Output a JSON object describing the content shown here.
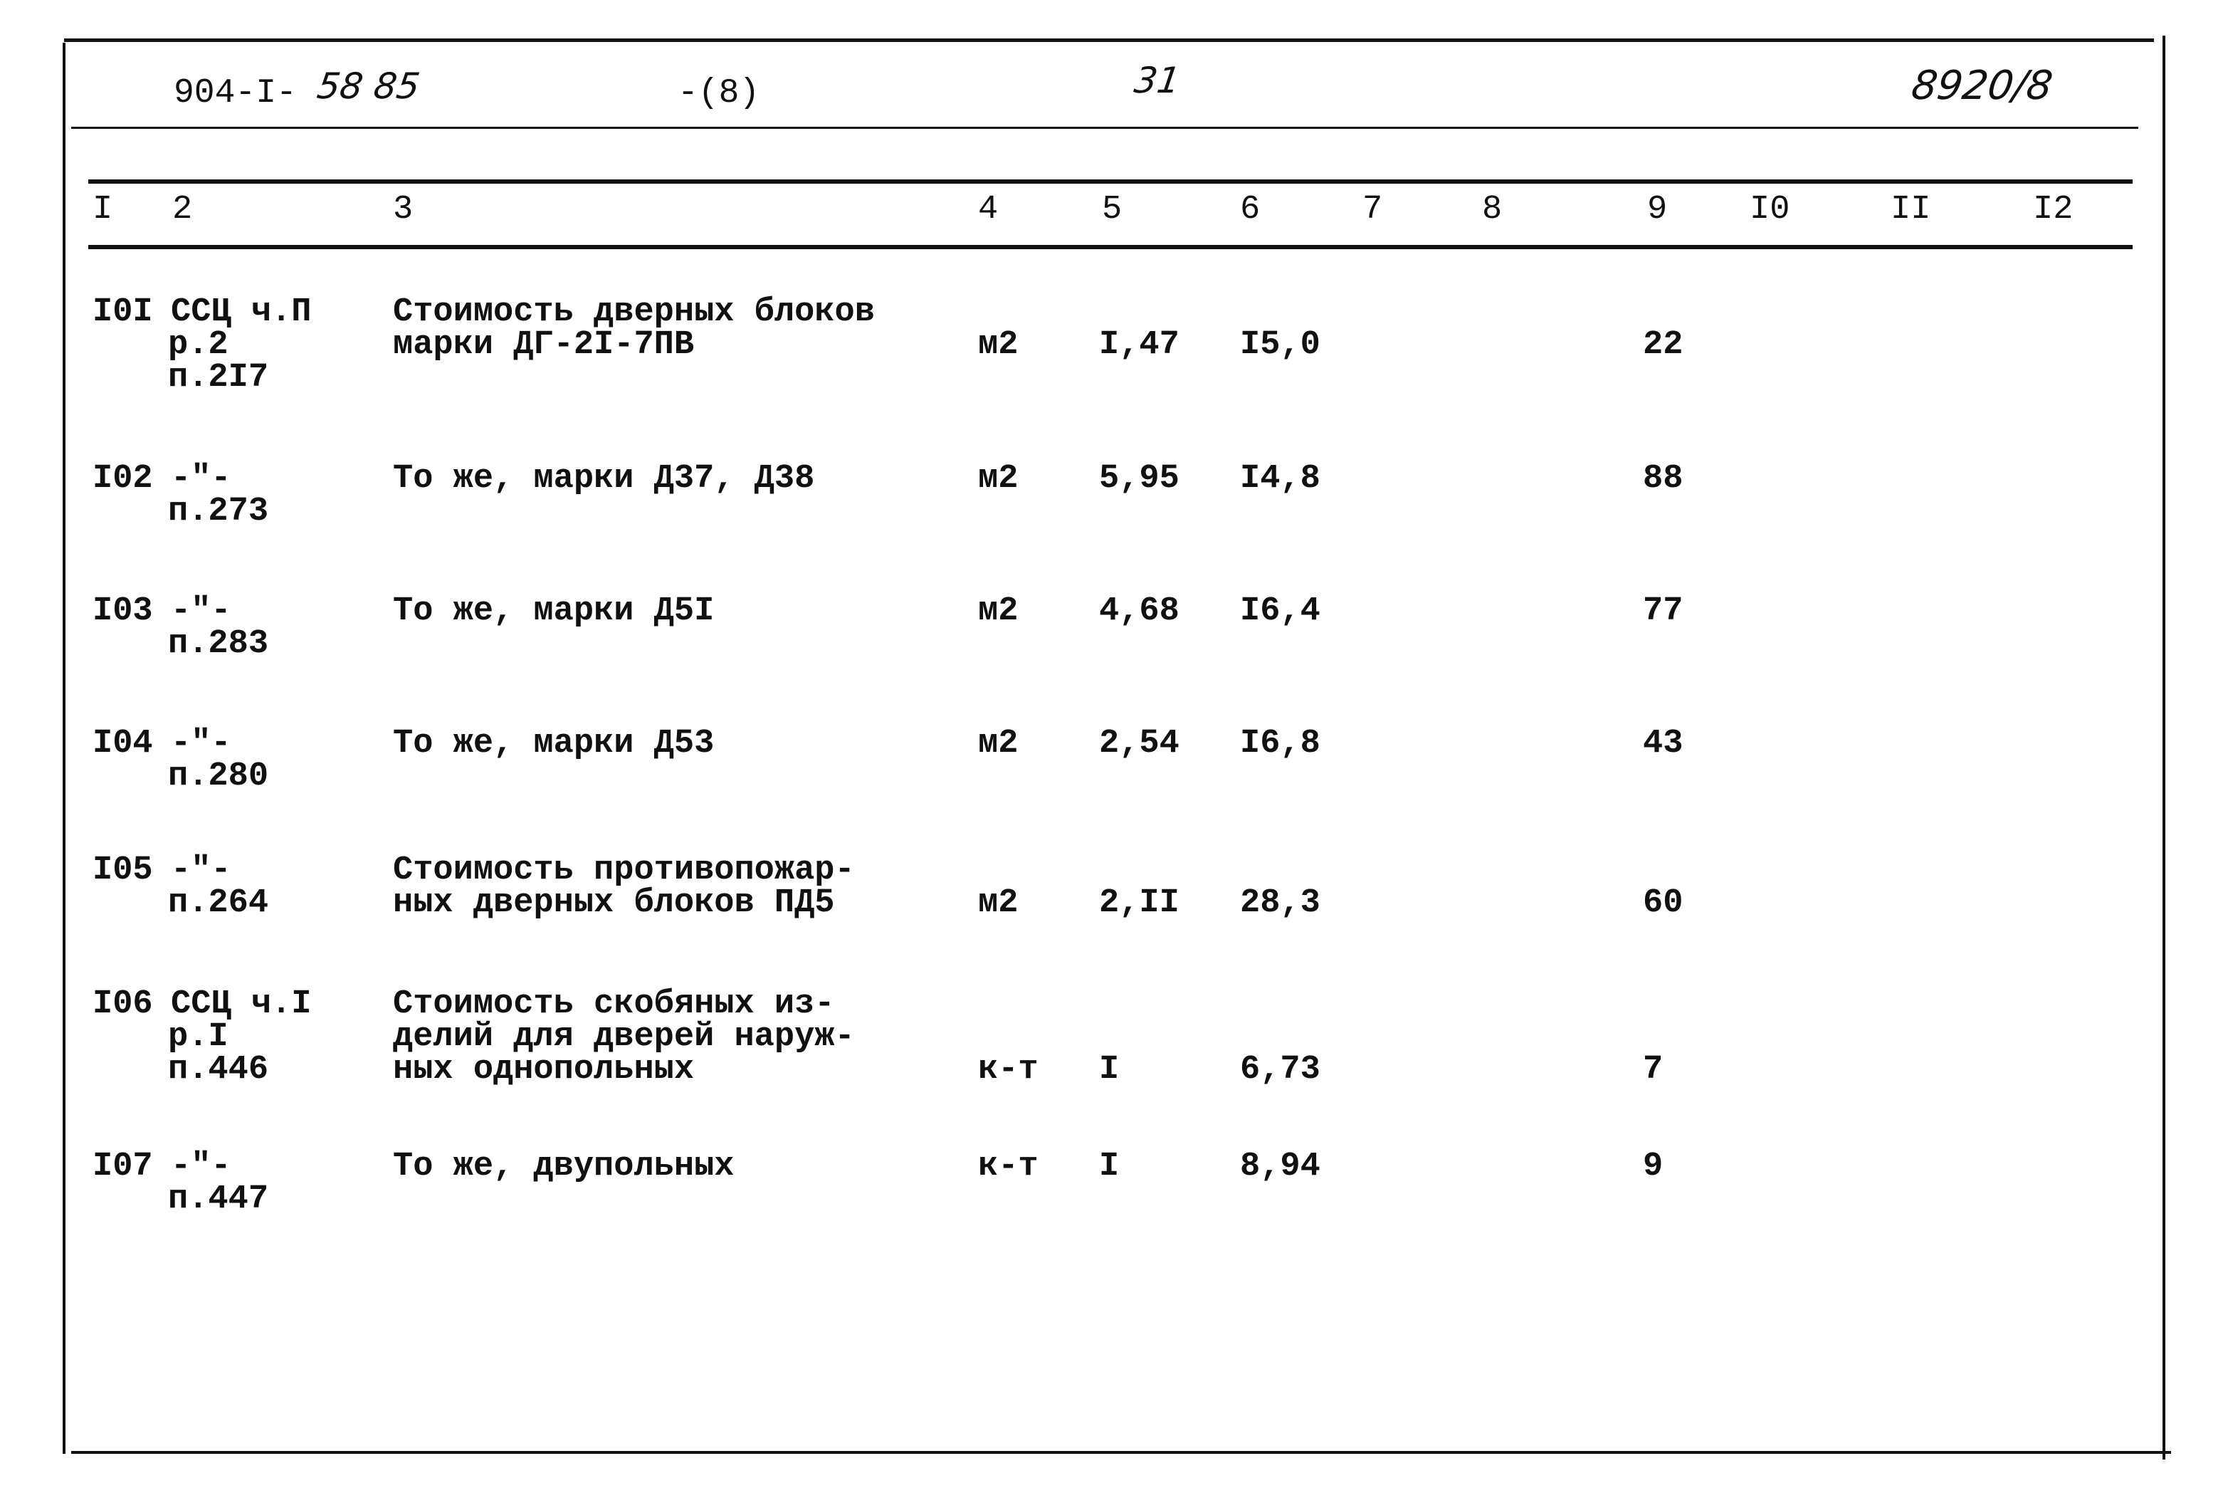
{
  "header": {
    "project_code": "904-I-",
    "project_code_handwritten": "58 85",
    "part": "-(8)",
    "page_number": "31",
    "archive_number": "8920/8"
  },
  "columns": [
    "I",
    "2",
    "3",
    "4",
    "5",
    "6",
    "7",
    "8",
    "9",
    "I0",
    "II",
    "I2"
  ],
  "rows": [
    {
      "num": "I0I",
      "ref": [
        "ССЦ ч.П",
        "р.2",
        "п.2I7"
      ],
      "desc": [
        "Стоимость дверных блоков",
        "марки ДГ-2I-7ПВ"
      ],
      "unit": "м2",
      "qty": "I,47",
      "price": "I5,0",
      "total": "22"
    },
    {
      "num": "I02",
      "ref": [
        "-\"-",
        "п.273"
      ],
      "desc": [
        "То же, марки Д37, Д38"
      ],
      "unit": "м2",
      "qty": "5,95",
      "price": "I4,8",
      "total": "88"
    },
    {
      "num": "I03",
      "ref": [
        "-\"-",
        "п.283"
      ],
      "desc": [
        "То же, марки Д5I"
      ],
      "unit": "м2",
      "qty": "4,68",
      "price": "I6,4",
      "total": "77"
    },
    {
      "num": "I04",
      "ref": [
        "-\"-",
        "п.280"
      ],
      "desc": [
        "То же, марки Д53"
      ],
      "unit": "м2",
      "qty": "2,54",
      "price": "I6,8",
      "total": "43"
    },
    {
      "num": "I05",
      "ref": [
        "-\"-",
        "п.264"
      ],
      "desc": [
        "Стоимость противопожар-",
        "ных дверных блоков ПД5"
      ],
      "unit": "м2",
      "qty": "2,II",
      "price": "28,3",
      "total": "60"
    },
    {
      "num": "I06",
      "ref": [
        "ССЦ ч.I",
        "р.I",
        "п.446"
      ],
      "desc": [
        "Стоимость скобяных из-",
        "делий для дверей наруж-",
        "ных однопольных"
      ],
      "unit": "к-т",
      "qty": "I",
      "price": "6,73",
      "total": "7"
    },
    {
      "num": "I07",
      "ref": [
        "-\"-",
        "п.447"
      ],
      "desc": [
        "То же, двупольных"
      ],
      "unit": "к-т",
      "qty": "I",
      "price": "8,94",
      "total": "9"
    }
  ]
}
